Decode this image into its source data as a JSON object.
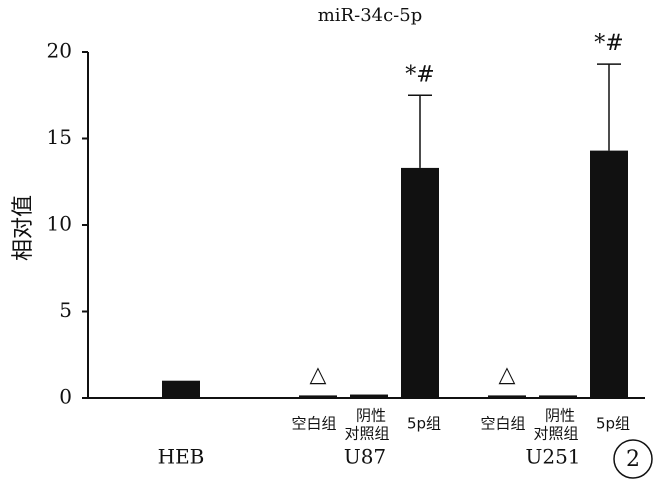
{
  "chart_data": {
    "type": "bar",
    "title": "miR-34c-5p",
    "ylabel": "相对值",
    "panel_label": "2",
    "color": "#111111",
    "ylim": [
      0,
      20
    ],
    "yticks": [
      0,
      5,
      10,
      15,
      20
    ],
    "groups": [
      {
        "name": "HEB",
        "categories": [
          null
        ],
        "values": [
          1.0
        ],
        "errors": [
          null
        ],
        "annotations": [
          null
        ]
      },
      {
        "name": "U87",
        "categories": [
          "空白组",
          [
            "阴性",
            "对照组"
          ],
          "5p组"
        ],
        "values": [
          0.15,
          0.2,
          13.3
        ],
        "errors": [
          null,
          null,
          4.2
        ],
        "annotations": [
          "△",
          null,
          "*#"
        ]
      },
      {
        "name": "U251",
        "categories": [
          "空白组",
          [
            "阴性",
            "对照组"
          ],
          "5p组"
        ],
        "values": [
          0.15,
          0.15,
          14.3
        ],
        "errors": [
          null,
          null,
          5.0
        ],
        "annotations": [
          "△",
          null,
          "*#"
        ]
      }
    ]
  }
}
